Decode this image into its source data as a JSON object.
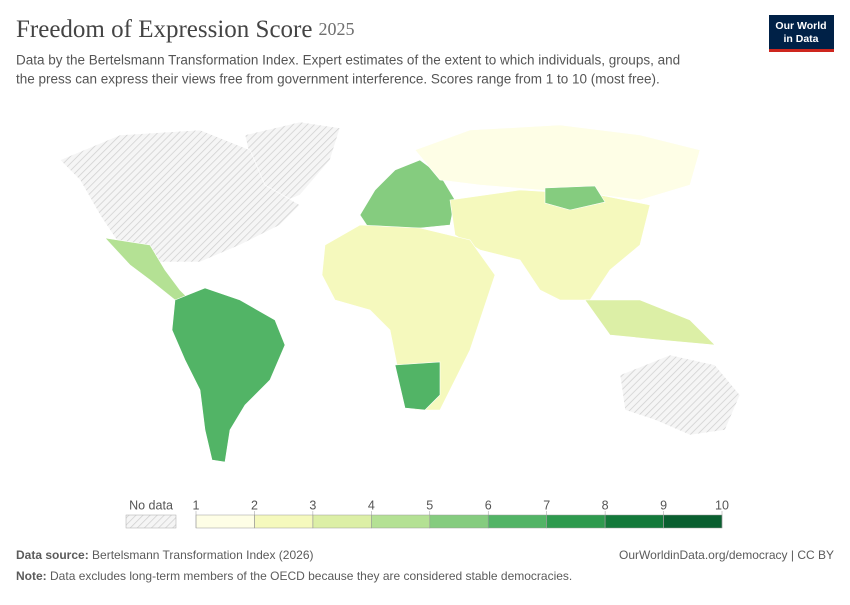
{
  "header": {
    "title": "Freedom of Expression Score",
    "year": "2025",
    "subtitle_line1": "Data by the Bertelsmann Transformation Index. Expert estimates of the extent to which individuals, groups, and",
    "subtitle_line2": "the press can express their views free from government interference. Scores range from 1 to 10 (most free).",
    "logo_line1": "Our World",
    "logo_line2": "in Data"
  },
  "legend": {
    "no_data": "No data",
    "ticks": [
      1,
      2,
      3,
      4,
      5,
      6,
      7,
      8,
      9,
      10
    ],
    "colors": [
      "#fefee6",
      "#f5f9bd",
      "#dcefa6",
      "#b4e194",
      "#85cc7f",
      "#52b466",
      "#2e9a4e",
      "#13793a",
      "#0a5f30"
    ]
  },
  "footer": {
    "source_label": "Data source:",
    "source": "Bertelsmann Transformation Index (2026)",
    "url": "OurWorldinData.org/democracy | CC BY",
    "note_label": "Note:",
    "note": "Data excludes long-term members of the OECD because they are considered stable democracies."
  }
}
